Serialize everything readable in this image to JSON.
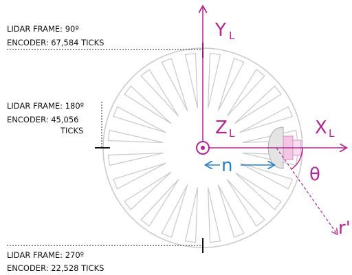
{
  "labels": {
    "frame_90": "LIDAR FRAME: 90º",
    "encoder_90": "ENCODER: 67,584 TICKS",
    "frame_180": "LIDAR FRAME: 180º",
    "encoder_180": "ENCODER: 45,056",
    "encoder_180_unit": "TICKS",
    "frame_270": "LIDAR FRAME: 270º",
    "encoder_270": "ENCODER: 22,528 TICKS"
  },
  "axes": {
    "y": "Y",
    "y_sub": "L",
    "z": "Z",
    "z_sub": "L",
    "x": "X",
    "x_sub": "L",
    "n": "n",
    "theta": "θ",
    "r": "r'"
  }
}
